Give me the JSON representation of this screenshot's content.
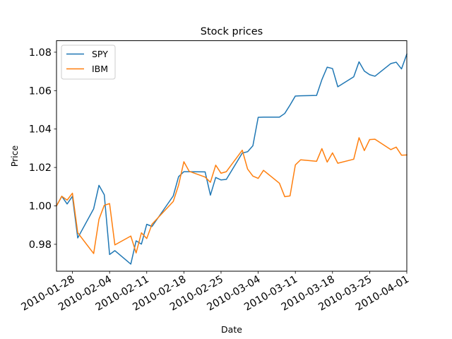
{
  "chart_data": {
    "type": "line",
    "title": "Stock prices",
    "xlabel": "Date",
    "ylabel": "Price",
    "xlim": [
      "2010-01-25",
      "2010-04-01"
    ],
    "ylim": [
      0.966,
      1.086
    ],
    "yticks": [
      0.98,
      1.0,
      1.02,
      1.04,
      1.06,
      1.08
    ],
    "ytick_labels": [
      "0.98",
      "1.00",
      "1.02",
      "1.04",
      "1.06",
      "1.08"
    ],
    "xticks": [
      "2010-01-28",
      "2010-02-04",
      "2010-02-11",
      "2010-02-18",
      "2010-02-25",
      "2010-03-04",
      "2010-03-11",
      "2010-03-18",
      "2010-03-25",
      "2010-04-01"
    ],
    "grid": false,
    "legend_position": "top-left",
    "series": [
      {
        "name": "SPY",
        "color": "#1f77b4",
        "x": [
          "2010-01-25",
          "2010-01-26",
          "2010-01-27",
          "2010-01-28",
          "2010-01-29",
          "2010-02-01",
          "2010-02-02",
          "2010-02-03",
          "2010-02-04",
          "2010-02-05",
          "2010-02-08",
          "2010-02-09",
          "2010-02-10",
          "2010-02-11",
          "2010-02-12",
          "2010-02-16",
          "2010-02-17",
          "2010-02-18",
          "2010-02-19",
          "2010-02-22",
          "2010-02-23",
          "2010-02-24",
          "2010-02-25",
          "2010-02-26",
          "2010-03-01",
          "2010-03-02",
          "2010-03-03",
          "2010-03-04",
          "2010-03-05",
          "2010-03-08",
          "2010-03-09",
          "2010-03-10",
          "2010-03-11",
          "2010-03-12",
          "2010-03-15",
          "2010-03-16",
          "2010-03-17",
          "2010-03-18",
          "2010-03-19",
          "2010-03-22",
          "2010-03-23",
          "2010-03-24",
          "2010-03-25",
          "2010-03-26",
          "2010-03-29",
          "2010-03-30",
          "2010-03-31",
          "2010-04-01"
        ],
        "values": [
          1.0,
          1.005,
          1.001,
          1.005,
          0.9833,
          0.9985,
          1.0107,
          1.0058,
          0.9747,
          0.9767,
          0.9697,
          0.9818,
          0.9801,
          0.9904,
          0.9893,
          1.0052,
          1.0152,
          1.0178,
          1.0178,
          1.0177,
          1.0056,
          1.0148,
          1.0135,
          1.0138,
          1.0275,
          1.0282,
          1.0313,
          1.0461,
          1.0462,
          1.0462,
          1.0481,
          1.0525,
          1.0572,
          1.0573,
          1.0575,
          1.0657,
          1.0722,
          1.0715,
          1.062,
          1.0672,
          1.075,
          1.0702,
          1.0683,
          1.0675,
          1.0741,
          1.0748,
          1.0713,
          1.079
        ]
      },
      {
        "name": "IBM",
        "color": "#ff7f0e",
        "x": [
          "2010-01-25",
          "2010-01-26",
          "2010-01-27",
          "2010-01-28",
          "2010-01-29",
          "2010-02-01",
          "2010-02-02",
          "2010-02-03",
          "2010-02-04",
          "2010-02-05",
          "2010-02-08",
          "2010-02-09",
          "2010-02-10",
          "2010-02-11",
          "2010-02-12",
          "2010-02-16",
          "2010-02-17",
          "2010-02-18",
          "2010-02-19",
          "2010-02-22",
          "2010-02-23",
          "2010-02-24",
          "2010-02-25",
          "2010-02-26",
          "2010-03-01",
          "2010-03-02",
          "2010-03-03",
          "2010-03-04",
          "2010-03-05",
          "2010-03-08",
          "2010-03-09",
          "2010-03-10",
          "2010-03-11",
          "2010-03-12",
          "2010-03-15",
          "2010-03-16",
          "2010-03-17",
          "2010-03-18",
          "2010-03-19",
          "2010-03-22",
          "2010-03-23",
          "2010-03-24",
          "2010-03-25",
          "2010-03-26",
          "2010-03-29",
          "2010-03-30",
          "2010-03-31",
          "2010-04-01"
        ],
        "values": [
          1.0,
          1.005,
          1.003,
          1.0066,
          0.986,
          0.9752,
          0.993,
          1.0003,
          1.0012,
          0.9797,
          0.9843,
          0.9755,
          0.986,
          0.983,
          0.9905,
          1.0023,
          1.0108,
          1.023,
          1.018,
          1.015,
          1.0123,
          1.0212,
          1.017,
          1.0178,
          1.029,
          1.0192,
          1.0155,
          1.0143,
          1.0185,
          1.0118,
          1.0048,
          1.0052,
          1.0213,
          1.024,
          1.0232,
          1.0298,
          1.0228,
          1.0276,
          1.0222,
          1.0243,
          1.0355,
          1.0288,
          1.0345,
          1.0347,
          1.0293,
          1.0306,
          1.0264,
          1.0265
        ]
      }
    ]
  }
}
